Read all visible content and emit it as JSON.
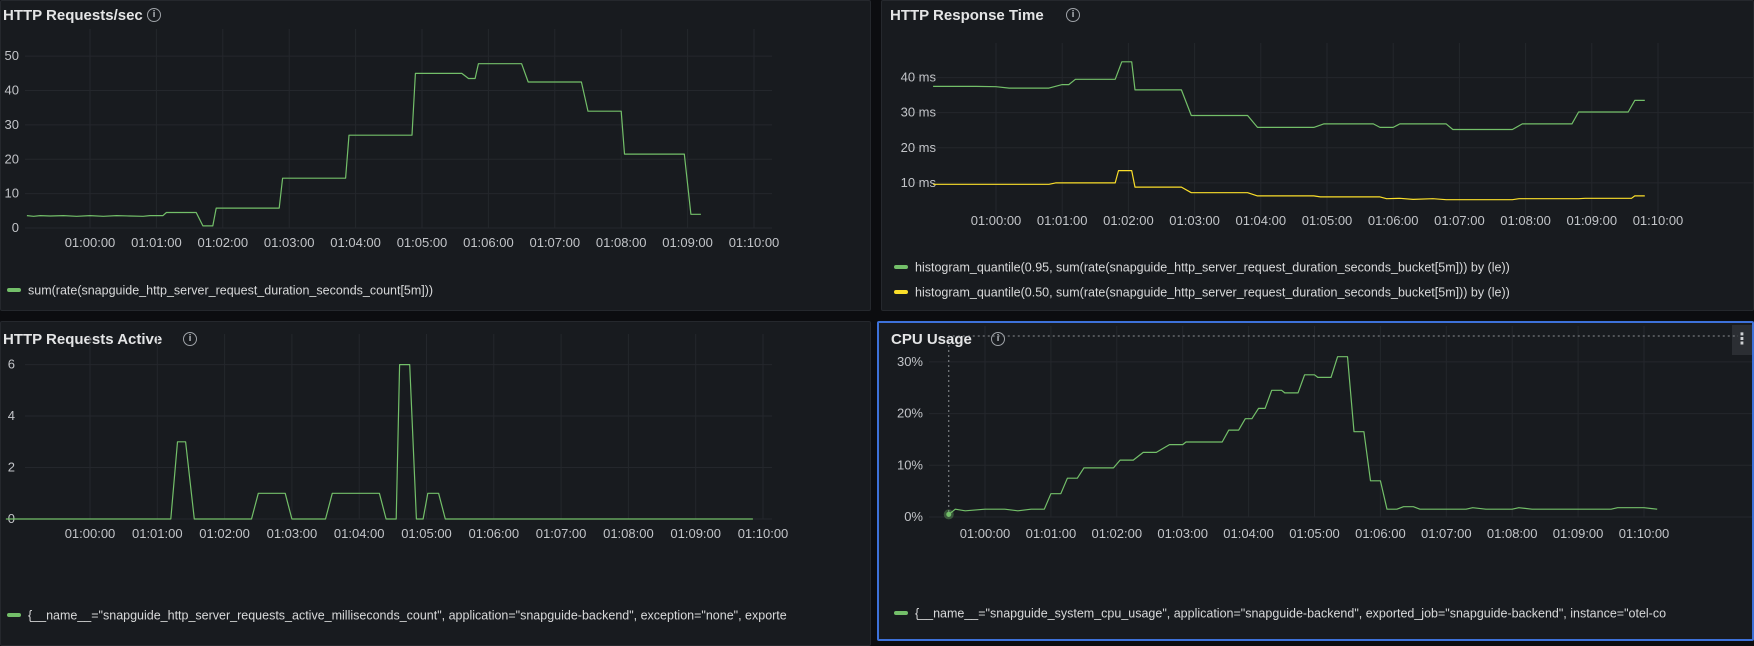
{
  "colors": {
    "green": "#73bf69",
    "yellow": "#fade2a",
    "focus": "#3d71d9"
  },
  "icons": {
    "info": "info-circle-icon",
    "menu": "vertical-ellipsis-icon"
  },
  "panels": [
    {
      "title": "HTTP Requests/sec",
      "info_glyph": "i",
      "legend": [
        "sum(rate(snapguide_http_server_request_duration_seconds_count[5m]))"
      ],
      "x_ticks": [
        "01:00:00",
        "01:01:00",
        "01:02:00",
        "01:03:00",
        "01:04:00",
        "01:05:00",
        "01:06:00",
        "01:07:00",
        "01:08:00",
        "01:09:00",
        "01:10:00"
      ],
      "y_ticks": [
        "0",
        "10",
        "20",
        "30",
        "40",
        "50"
      ]
    },
    {
      "title": "HTTP Response Time",
      "info_glyph": "i",
      "legend": [
        "histogram_quantile(0.95, sum(rate(snapguide_http_server_request_duration_seconds_bucket[5m])) by (le))",
        "histogram_quantile(0.50, sum(rate(snapguide_http_server_request_duration_seconds_bucket[5m])) by (le))"
      ],
      "x_ticks": [
        "01:00:00",
        "01:01:00",
        "01:02:00",
        "01:03:00",
        "01:04:00",
        "01:05:00",
        "01:06:00",
        "01:07:00",
        "01:08:00",
        "01:09:00",
        "01:10:00"
      ],
      "y_ticks": [
        "10 ms",
        "20 ms",
        "30 ms",
        "40 ms"
      ]
    },
    {
      "title": "HTTP Requests Active",
      "info_glyph": "i",
      "legend": [
        "{__name__=\"snapguide_http_server_requests_active_milliseconds_count\", application=\"snapguide-backend\", exception=\"none\", exporte"
      ],
      "x_ticks": [
        "01:00:00",
        "01:01:00",
        "01:02:00",
        "01:03:00",
        "01:04:00",
        "01:05:00",
        "01:06:00",
        "01:07:00",
        "01:08:00",
        "01:09:00",
        "01:10:00"
      ],
      "y_ticks": [
        "0",
        "2",
        "4",
        "6"
      ]
    },
    {
      "title": "CPU Usage",
      "info_glyph": "i",
      "menu_glyph": "⋮",
      "legend": [
        "{__name__=\"snapguide_system_cpu_usage\", application=\"snapguide-backend\", exported_job=\"snapguide-backend\", instance=\"otel-co"
      ],
      "x_ticks": [
        "01:00:00",
        "01:01:00",
        "01:02:00",
        "01:03:00",
        "01:04:00",
        "01:05:00",
        "01:06:00",
        "01:07:00",
        "01:08:00",
        "01:09:00",
        "01:10:00"
      ],
      "y_ticks": [
        "0%",
        "10%",
        "20%",
        "30%"
      ]
    }
  ],
  "chart_data": [
    {
      "type": "line",
      "title": "HTTP Requests/sec",
      "ylim": [
        0,
        55
      ],
      "series": [
        {
          "name": "sum(rate(snapguide_http_server_request_duration_seconds_count[5m]))",
          "points": [
            [
              -0.95,
              3.6
            ],
            [
              -0.85,
              3.4
            ],
            [
              -0.75,
              3.6
            ],
            [
              -0.6,
              3.5
            ],
            [
              -0.4,
              3.6
            ],
            [
              -0.2,
              3.4
            ],
            [
              0,
              3.6
            ],
            [
              0.2,
              3.4
            ],
            [
              0.4,
              3.6
            ],
            [
              0.6,
              3.5
            ],
            [
              0.8,
              3.4
            ],
            [
              0.9,
              3.6
            ],
            [
              1.1,
              3.6
            ],
            [
              1.15,
              4.5
            ],
            [
              1.6,
              4.5
            ],
            [
              1.7,
              0.6
            ],
            [
              1.85,
              0.6
            ],
            [
              1.9,
              5.8
            ],
            [
              2.85,
              5.8
            ],
            [
              2.9,
              14.5
            ],
            [
              3.85,
              14.5
            ],
            [
              3.9,
              27
            ],
            [
              4.85,
              27
            ],
            [
              4.9,
              45
            ],
            [
              5.6,
              45
            ],
            [
              5.7,
              43.5
            ],
            [
              5.8,
              43.5
            ],
            [
              5.85,
              47.8
            ],
            [
              6.5,
              47.8
            ],
            [
              6.6,
              42.5
            ],
            [
              7.4,
              42.5
            ],
            [
              7.5,
              34
            ],
            [
              8.0,
              34
            ],
            [
              8.05,
              21.5
            ],
            [
              8.95,
              21.5
            ],
            [
              9.05,
              4
            ],
            [
              9.2,
              4
            ]
          ]
        }
      ]
    },
    {
      "type": "line",
      "title": "HTTP Response Time",
      "ylim": [
        0,
        47
      ],
      "series": [
        {
          "name": "histogram_quantile(0.95, sum(rate(snapguide_http_server_request_duration_seconds_bucket[5m])) by (le))",
          "points": [
            [
              -0.95,
              37.5
            ],
            [
              -0.3,
              37.5
            ],
            [
              0,
              37.4
            ],
            [
              0.2,
              37
            ],
            [
              0.8,
              37
            ],
            [
              1.0,
              38
            ],
            [
              1.1,
              38
            ],
            [
              1.2,
              39.5
            ],
            [
              1.8,
              39.5
            ],
            [
              1.9,
              44.5
            ],
            [
              2.05,
              44.5
            ],
            [
              2.1,
              36.5
            ],
            [
              2.8,
              36.5
            ],
            [
              2.95,
              29.2
            ],
            [
              3.8,
              29.2
            ],
            [
              3.95,
              25.8
            ],
            [
              4.8,
              25.8
            ],
            [
              4.95,
              26.8
            ],
            [
              5.7,
              26.8
            ],
            [
              5.8,
              25.8
            ],
            [
              6.0,
              25.8
            ],
            [
              6.1,
              26.8
            ],
            [
              6.8,
              26.8
            ],
            [
              6.9,
              25.2
            ],
            [
              7.8,
              25.2
            ],
            [
              7.95,
              26.8
            ],
            [
              8.7,
              26.8
            ],
            [
              8.8,
              30.2
            ],
            [
              9.55,
              30.2
            ],
            [
              9.65,
              33.5
            ],
            [
              9.8,
              33.5
            ]
          ]
        },
        {
          "name": "histogram_quantile(0.50, sum(rate(snapguide_http_server_request_duration_seconds_bucket[5m])) by (le))",
          "points": [
            [
              -0.95,
              9.6
            ],
            [
              0.8,
              9.6
            ],
            [
              0.9,
              10
            ],
            [
              1.8,
              10
            ],
            [
              1.85,
              13.5
            ],
            [
              2.05,
              13.5
            ],
            [
              2.1,
              8.8
            ],
            [
              2.8,
              8.8
            ],
            [
              2.95,
              7.2
            ],
            [
              3.8,
              7.2
            ],
            [
              3.95,
              6.3
            ],
            [
              4.8,
              6.3
            ],
            [
              4.9,
              6
            ],
            [
              5.8,
              6
            ],
            [
              5.9,
              5.5
            ],
            [
              6.1,
              5.6
            ],
            [
              6.3,
              5.3
            ],
            [
              6.6,
              5.5
            ],
            [
              6.8,
              5.2
            ],
            [
              7.8,
              5.2
            ],
            [
              7.9,
              5.5
            ],
            [
              8.8,
              5.5
            ],
            [
              8.9,
              5.6
            ],
            [
              9.6,
              5.6
            ],
            [
              9.65,
              6.3
            ],
            [
              9.8,
              6.3
            ]
          ]
        }
      ]
    },
    {
      "type": "line",
      "title": "HTTP Requests Active",
      "ylim": [
        0,
        6.8
      ],
      "series": [
        {
          "name": "snapguide_http_server_requests_active_milliseconds_count",
          "points": [
            [
              -1.25,
              0
            ],
            [
              1.2,
              0
            ],
            [
              1.3,
              3
            ],
            [
              1.42,
              3
            ],
            [
              1.55,
              0
            ],
            [
              2.4,
              0
            ],
            [
              2.5,
              1
            ],
            [
              2.9,
              1
            ],
            [
              3.0,
              0
            ],
            [
              3.5,
              0
            ],
            [
              3.6,
              1
            ],
            [
              4.3,
              1
            ],
            [
              4.4,
              0
            ],
            [
              4.55,
              0
            ],
            [
              4.6,
              6
            ],
            [
              4.75,
              6
            ],
            [
              4.85,
              0
            ],
            [
              4.95,
              0
            ],
            [
              5.02,
              1
            ],
            [
              5.18,
              1
            ],
            [
              5.28,
              0
            ],
            [
              9.85,
              0
            ]
          ]
        }
      ]
    },
    {
      "type": "line",
      "title": "CPU Usage",
      "ylim": [
        0,
        35
      ],
      "series": [
        {
          "name": "snapguide_system_cpu_usage",
          "points": [
            [
              -0.55,
              0.5
            ],
            [
              -0.45,
              1.5
            ],
            [
              -0.3,
              1.2
            ],
            [
              0,
              1.5
            ],
            [
              0.3,
              1.5
            ],
            [
              0.5,
              1.2
            ],
            [
              0.7,
              1.5
            ],
            [
              0.9,
              1.5
            ],
            [
              1.0,
              4.5
            ],
            [
              1.15,
              4.5
            ],
            [
              1.25,
              7.5
            ],
            [
              1.4,
              7.5
            ],
            [
              1.5,
              9.5
            ],
            [
              1.95,
              9.5
            ],
            [
              2.05,
              11
            ],
            [
              2.25,
              11
            ],
            [
              2.4,
              12.5
            ],
            [
              2.6,
              12.5
            ],
            [
              2.8,
              14
            ],
            [
              3.0,
              14
            ],
            [
              3.05,
              14.5
            ],
            [
              3.6,
              14.5
            ],
            [
              3.7,
              16.8
            ],
            [
              3.85,
              16.8
            ],
            [
              3.95,
              19
            ],
            [
              4.05,
              19
            ],
            [
              4.15,
              21
            ],
            [
              4.25,
              21
            ],
            [
              4.35,
              24.5
            ],
            [
              4.5,
              24.5
            ],
            [
              4.55,
              24
            ],
            [
              4.75,
              24
            ],
            [
              4.85,
              27.5
            ],
            [
              5.0,
              27.5
            ],
            [
              5.05,
              27
            ],
            [
              5.25,
              27
            ],
            [
              5.35,
              31
            ],
            [
              5.5,
              31
            ],
            [
              5.6,
              16.5
            ],
            [
              5.75,
              16.5
            ],
            [
              5.85,
              7
            ],
            [
              6.0,
              7
            ],
            [
              6.1,
              1.5
            ],
            [
              6.25,
              1.5
            ],
            [
              6.35,
              2
            ],
            [
              6.5,
              2
            ],
            [
              6.6,
              1.5
            ],
            [
              7.3,
              1.5
            ],
            [
              7.4,
              1.8
            ],
            [
              7.6,
              1.5
            ],
            [
              8.0,
              1.5
            ],
            [
              8.1,
              1.8
            ],
            [
              8.3,
              1.5
            ],
            [
              9.5,
              1.5
            ],
            [
              9.6,
              1.8
            ],
            [
              10.0,
              1.8
            ],
            [
              10.2,
              1.5
            ]
          ]
        }
      ]
    }
  ]
}
